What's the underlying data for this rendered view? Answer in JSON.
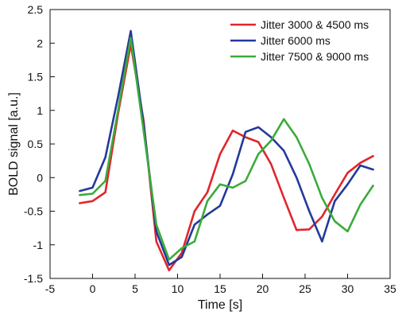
{
  "chart_data": {
    "type": "line",
    "title": "",
    "xlabel": "Time [s]",
    "ylabel": "BOLD signal [a.u.]",
    "xlim": [
      -5,
      35
    ],
    "ylim": [
      -1.5,
      2.5
    ],
    "xticks": [
      -5,
      0,
      5,
      10,
      15,
      20,
      25,
      30,
      35
    ],
    "yticks": [
      -1.5,
      -1,
      -0.5,
      0,
      0.5,
      1,
      1.5,
      2,
      2.5
    ],
    "xtick_labels": [
      "-5",
      "0",
      "5",
      "10",
      "15",
      "20",
      "25",
      "30",
      "35"
    ],
    "ytick_labels": [
      "-1.5",
      "-1",
      "-0.5",
      "0",
      "0.5",
      "1",
      "1.5",
      "2",
      "2.5"
    ],
    "grid": false,
    "legend_position": "top-right",
    "series": [
      {
        "name": "Jitter 3000 & 4500 ms",
        "color": "#e0262b",
        "x": [
          -1.5,
          0,
          1.5,
          3,
          4.5,
          6,
          7.5,
          9,
          10.5,
          12,
          13.5,
          15,
          16.5,
          18,
          19.5,
          21,
          22.5,
          24,
          25.5,
          27,
          28.5,
          30,
          31.5,
          33
        ],
        "y": [
          -0.38,
          -0.35,
          -0.22,
          0.95,
          1.98,
          0.85,
          -0.95,
          -1.38,
          -1.12,
          -0.5,
          -0.22,
          0.35,
          0.7,
          0.6,
          0.53,
          0.2,
          -0.3,
          -0.78,
          -0.77,
          -0.58,
          -0.25,
          0.07,
          0.22,
          0.32
        ]
      },
      {
        "name": "Jitter 6000 ms",
        "color": "#23399a",
        "x": [
          -1.5,
          0,
          1.5,
          3,
          4.5,
          6,
          7.5,
          9,
          10.5,
          12,
          13.5,
          15,
          16.5,
          18,
          19.5,
          21,
          22.5,
          24,
          25.5,
          27,
          28.5,
          30,
          31.5,
          33
        ],
        "y": [
          -0.2,
          -0.15,
          0.3,
          1.2,
          2.18,
          0.8,
          -0.8,
          -1.3,
          -1.18,
          -0.7,
          -0.55,
          -0.42,
          0.05,
          0.68,
          0.75,
          0.6,
          0.4,
          0.0,
          -0.5,
          -0.95,
          -0.35,
          -0.1,
          0.18,
          0.12
        ]
      },
      {
        "name": "Jitter 7500 & 9000 ms",
        "color": "#3bab3c",
        "x": [
          -1.5,
          0,
          1.5,
          3,
          4.5,
          6,
          7.5,
          9,
          10.5,
          12,
          13.5,
          15,
          16.5,
          18,
          19.5,
          21,
          22.5,
          24,
          25.5,
          27,
          28.5,
          30,
          31.5,
          33
        ],
        "y": [
          -0.26,
          -0.24,
          -0.05,
          1.0,
          2.08,
          0.7,
          -0.7,
          -1.22,
          -1.05,
          -0.95,
          -0.35,
          -0.1,
          -0.15,
          -0.05,
          0.35,
          0.55,
          0.87,
          0.6,
          0.2,
          -0.3,
          -0.65,
          -0.8,
          -0.4,
          -0.12
        ]
      }
    ]
  }
}
